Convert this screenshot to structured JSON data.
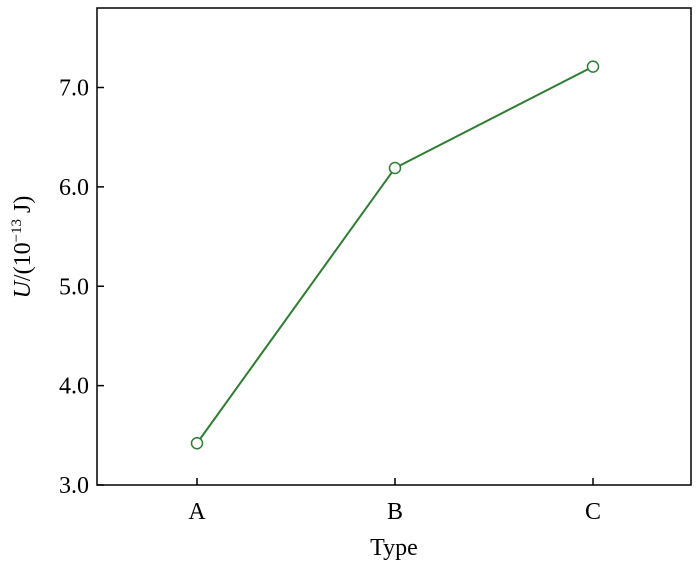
{
  "chart_data": {
    "type": "line",
    "title": "",
    "xlabel": "Type",
    "ylabel": {
      "symbol": "U",
      "prefix": "/(10",
      "exponent": "−13",
      "suffix": " J)"
    },
    "categories": [
      "A",
      "B",
      "C"
    ],
    "series": [
      {
        "values": [
          3.42,
          6.19,
          7.21
        ],
        "color": "#2e7d32",
        "marker": "open-circle"
      }
    ],
    "ylim": [
      3.0,
      7.8
    ],
    "yticks": [
      3.0,
      4.0,
      5.0,
      6.0,
      7.0
    ],
    "ytick_labels": [
      "3.0",
      "4.0",
      "5.0",
      "6.0",
      "7.0"
    ],
    "grid": false,
    "legend": "none"
  }
}
